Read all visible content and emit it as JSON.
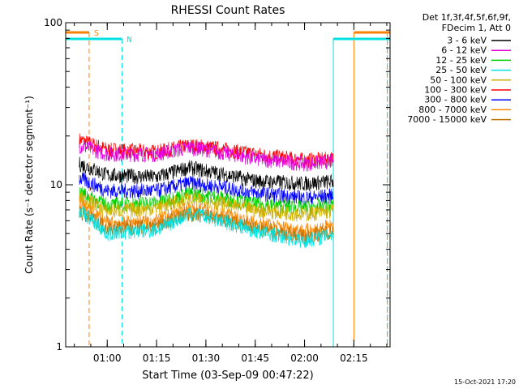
{
  "chart_data": {
    "type": "line",
    "title": "RHESSI Count Rates",
    "xlabel": "Start Time (03-Sep-09 00:47:22)",
    "ylabel": "Count Rate (s⁻¹ detector segment⁻¹)",
    "y_scale": "log",
    "ylim": [
      1,
      100
    ],
    "y_ticks": [
      "1",
      "10",
      "100"
    ],
    "x_range": [
      "00:47:22",
      "02:26:00"
    ],
    "x_ticks": [
      "01:00",
      "01:15",
      "01:30",
      "01:45",
      "02:00",
      "02:15"
    ],
    "legend_placement": "right",
    "legend_header": [
      "Det 1f,3f,4f,5f,6f,9f,",
      "FDecim 1, Att 0"
    ],
    "timestamp": "15-Oct-2021 17:20",
    "data_span": [
      "00:51:30",
      "02:08:45"
    ],
    "series": [
      {
        "name": "3 - 6 keV",
        "color": "#000000",
        "x": [
          "00:51:30",
          "01:00:00",
          "01:15:00",
          "01:25:00",
          "01:30:00",
          "01:45:00",
          "02:00:00",
          "02:08:45"
        ],
        "y": [
          13.5,
          11.5,
          11.2,
          12.8,
          12.2,
          10.6,
          10.2,
          10.5
        ]
      },
      {
        "name": "6 - 12 keV",
        "color": "#e000e0",
        "x": [
          "00:51:30",
          "01:00:00",
          "01:15:00",
          "01:25:00",
          "01:30:00",
          "01:45:00",
          "02:00:00",
          "02:08:45"
        ],
        "y": [
          17.5,
          15.5,
          15.5,
          17.0,
          16.5,
          14.5,
          13.5,
          14.0
        ]
      },
      {
        "name": "12 - 25 keV",
        "color": "#00d000",
        "x": [
          "00:51:30",
          "01:00:00",
          "01:15:00",
          "01:25:00",
          "01:30:00",
          "01:45:00",
          "02:00:00",
          "02:08:45"
        ],
        "y": [
          9.0,
          7.5,
          7.8,
          8.8,
          8.6,
          7.6,
          7.2,
          7.5
        ]
      },
      {
        "name": "25 - 50 keV",
        "color": "#00e0e0",
        "x": [
          "00:51:30",
          "01:00:00",
          "01:15:00",
          "01:25:00",
          "01:30:00",
          "01:45:00",
          "02:00:00",
          "02:08:45"
        ],
        "y": [
          7.0,
          5.0,
          5.3,
          6.6,
          6.4,
          5.2,
          4.5,
          5.0
        ]
      },
      {
        "name": "50 - 100 keV",
        "color": "#d0b000",
        "x": [
          "00:51:30",
          "01:00:00",
          "01:15:00",
          "01:25:00",
          "01:30:00",
          "01:45:00",
          "02:00:00",
          "02:08:45"
        ],
        "y": [
          8.4,
          6.9,
          7.2,
          8.2,
          8.0,
          7.0,
          6.6,
          6.9
        ]
      },
      {
        "name": "100 - 300 keV",
        "color": "#ff0000",
        "x": [
          "00:51:30",
          "01:00:00",
          "01:15:00",
          "01:25:00",
          "01:30:00",
          "01:45:00",
          "02:00:00",
          "02:08:45"
        ],
        "y": [
          19.0,
          16.5,
          16.0,
          17.5,
          17.2,
          15.5,
          14.2,
          14.5
        ]
      },
      {
        "name": "300 - 800 keV",
        "color": "#0000ff",
        "x": [
          "00:51:30",
          "01:00:00",
          "01:15:00",
          "01:25:00",
          "01:30:00",
          "01:45:00",
          "02:00:00",
          "02:08:45"
        ],
        "y": [
          11.0,
          9.2,
          9.2,
          10.3,
          10.0,
          8.9,
          8.3,
          8.6
        ]
      },
      {
        "name": "800 - 7000 keV",
        "color": "#ff8800",
        "x": [
          "00:51:30",
          "01:00:00",
          "01:15:00",
          "01:25:00",
          "01:30:00",
          "01:45:00",
          "02:00:00",
          "02:08:45"
        ],
        "y": [
          7.6,
          5.8,
          6.0,
          7.1,
          6.9,
          5.8,
          5.2,
          5.6
        ]
      },
      {
        "name": "7000 - 15000 keV",
        "color": "#c07000",
        "x": [
          "00:51:30",
          "01:00:00",
          "01:15:00",
          "01:25:00",
          "01:30:00",
          "01:45:00",
          "02:00:00",
          "02:08:45"
        ],
        "y": [
          6.8,
          5.4,
          5.6,
          6.6,
          6.4,
          5.4,
          4.8,
          5.2
        ]
      }
    ],
    "annotations": [
      {
        "label": "S",
        "color": "#ff8000",
        "bar": [
          "00:47:22",
          "00:54:30"
        ],
        "bar2": [
          "02:15:00",
          "02:26:00"
        ],
        "dashed_lines": [
          "00:54:30",
          "02:25:10"
        ],
        "solid_lines": [
          "02:15:00"
        ]
      },
      {
        "label": "N",
        "color": "#00e0e0",
        "bar": [
          "00:47:22",
          "01:04:30"
        ],
        "bar2": [
          "02:08:45",
          "02:26:00"
        ],
        "dashed_lines": [
          "01:04:30",
          "02:25:10"
        ],
        "solid_lines": [
          "02:08:45"
        ]
      }
    ]
  }
}
